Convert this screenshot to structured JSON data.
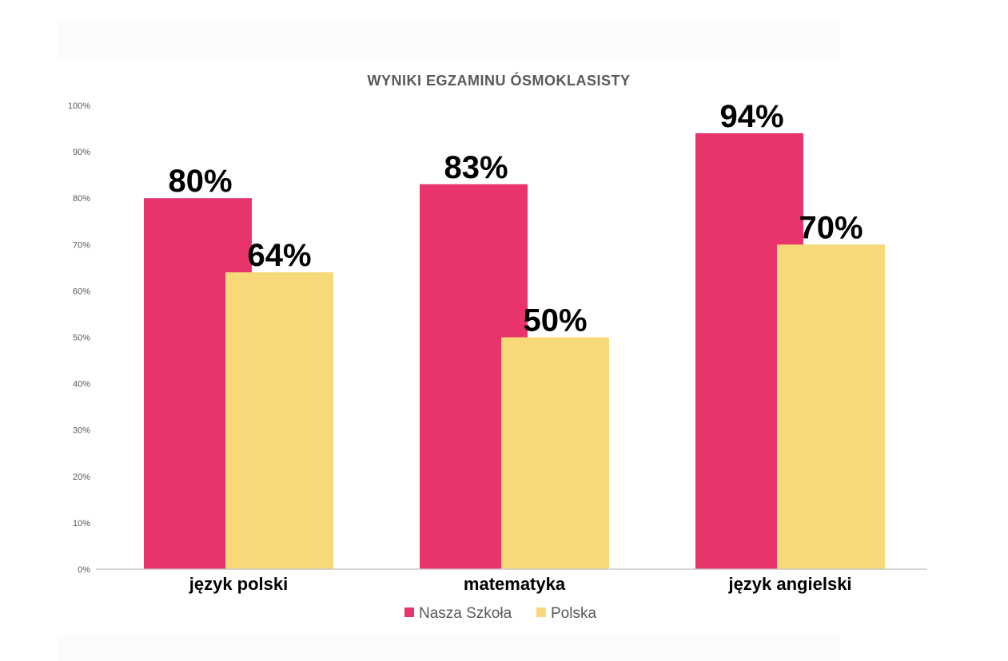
{
  "chart_data": {
    "type": "bar",
    "title": "WYNIKI EGZAMINU ÓSMOKLASISTY",
    "categories": [
      "język polski",
      "matematyka",
      "język angielski"
    ],
    "series": [
      {
        "name": "Nasza Szkoła",
        "values": [
          80,
          83,
          94
        ],
        "labels": [
          "80%",
          "83%",
          "94%"
        ],
        "color": "#E8346A"
      },
      {
        "name": "Polska",
        "values": [
          64,
          50,
          70
        ],
        "labels": [
          "64%",
          "50%",
          "70%"
        ],
        "color": "#F7D97A"
      }
    ],
    "ylim": [
      0,
      100
    ],
    "yticks": [
      "0%",
      "10%",
      "20%",
      "30%",
      "40%",
      "50%",
      "60%",
      "70%",
      "80%",
      "90%",
      "100%"
    ],
    "grid": false,
    "legend": "bottom"
  }
}
